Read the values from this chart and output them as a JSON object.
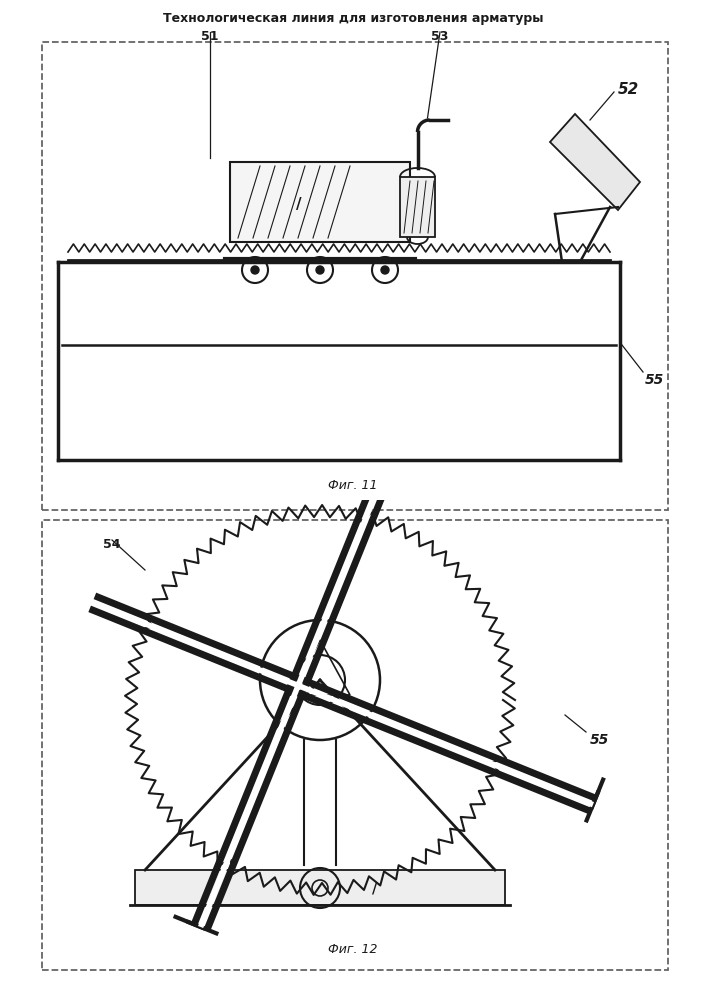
{
  "title": "Технологическая линия для изготовления арматуры",
  "fig1_label": "Фиг. 11",
  "fig2_label": "Фиг. 12",
  "label_51": "51",
  "label_52": "52",
  "label_53": "53",
  "label_54": "54",
  "label_55": "55",
  "bg_color": "#ffffff",
  "line_color": "#1a1a1a",
  "dash_color": "#666666"
}
